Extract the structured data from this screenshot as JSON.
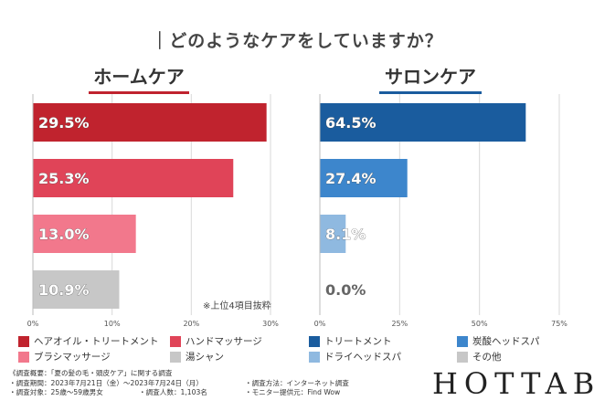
{
  "question": "｜どのようなケアをしていますか？",
  "note": "※上位4項目抜粋",
  "chart_data": [
    {
      "type": "bar",
      "orientation": "horizontal",
      "title": "ホームケア",
      "categories": [
        "ヘアオイル・トリートメント",
        "ハンドマッサージ",
        "ブラシマッサージ",
        "湯シャン"
      ],
      "values": [
        29.5,
        25.3,
        13.0,
        10.9
      ],
      "value_labels": [
        "29.5%",
        "25.3%",
        "13.0%",
        "10.9%"
      ],
      "colors": [
        "#c0232e",
        "#e04458",
        "#f2788c",
        "#c7c7c7"
      ],
      "xlim": [
        0,
        30
      ],
      "ticks": [
        0,
        10,
        20,
        30
      ],
      "tick_labels": [
        "0%",
        "10%",
        "20%",
        "30%"
      ],
      "grid": true
    },
    {
      "type": "bar",
      "orientation": "horizontal",
      "title": "サロンケア",
      "categories": [
        "トリートメント",
        "炭酸ヘッドスパ",
        "ドライヘッドスパ",
        "その他"
      ],
      "values": [
        64.5,
        27.4,
        8.1,
        0.0
      ],
      "value_labels": [
        "64.5%",
        "27.4%",
        "8.1%",
        "0.0%"
      ],
      "colors": [
        "#1a5c9e",
        "#3d86cc",
        "#8fb9e0",
        "#c7c7c7"
      ],
      "xlim": [
        0,
        75
      ],
      "ticks": [
        0,
        25,
        50,
        75
      ],
      "tick_labels": [
        "0%",
        "25%",
        "50%",
        "75%"
      ],
      "grid": true
    }
  ],
  "footnotes": {
    "title": "《調査概要：「夏の髪の毛・頭皮ケア」に関する調査",
    "period": "・調査期間：2023年7月21日（金）～2023年7月24日（月）",
    "method": "・調査方法：インターネット調査",
    "target": "・調査対象：25歳～59歳男女",
    "count": "・調査人数：1,103名",
    "provider": "・モニター提供元：Find Wow"
  },
  "logo": "HOTTAB"
}
